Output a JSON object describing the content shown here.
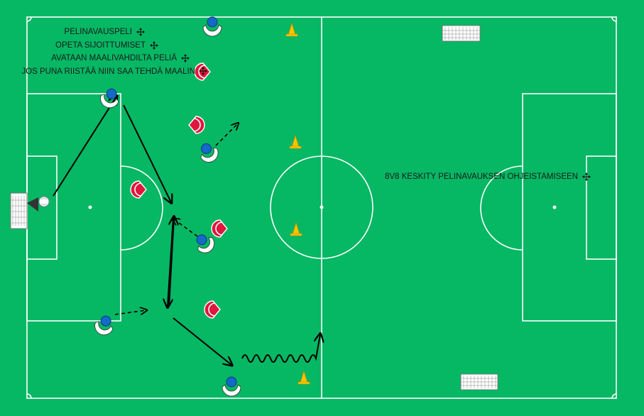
{
  "pitch": {
    "grass_color": "#06b764",
    "line_color": "#ffffff",
    "blue_team_color": "#1469c9",
    "red_team_color": "#e0173c",
    "cone_color": "#f5c500"
  },
  "notes": {
    "line1": "PELINAVAUSPELI",
    "line2": "OPETA SIJOITTUMISET",
    "line3": "AVATAAN MAALIVAHDILTA PELIÄ",
    "line4": "JOS PUNA RIISTÄÄ NIIN SAA TEHDÄ MAALIN",
    "right_note": "8V8 KESKITY PELINAVAUKSEN OHJEISTAMISEEN"
  },
  "icons": {
    "move_handle": "move-icon",
    "ball": "ball-icon",
    "cone": "cone-icon",
    "goal": "goal-icon"
  }
}
